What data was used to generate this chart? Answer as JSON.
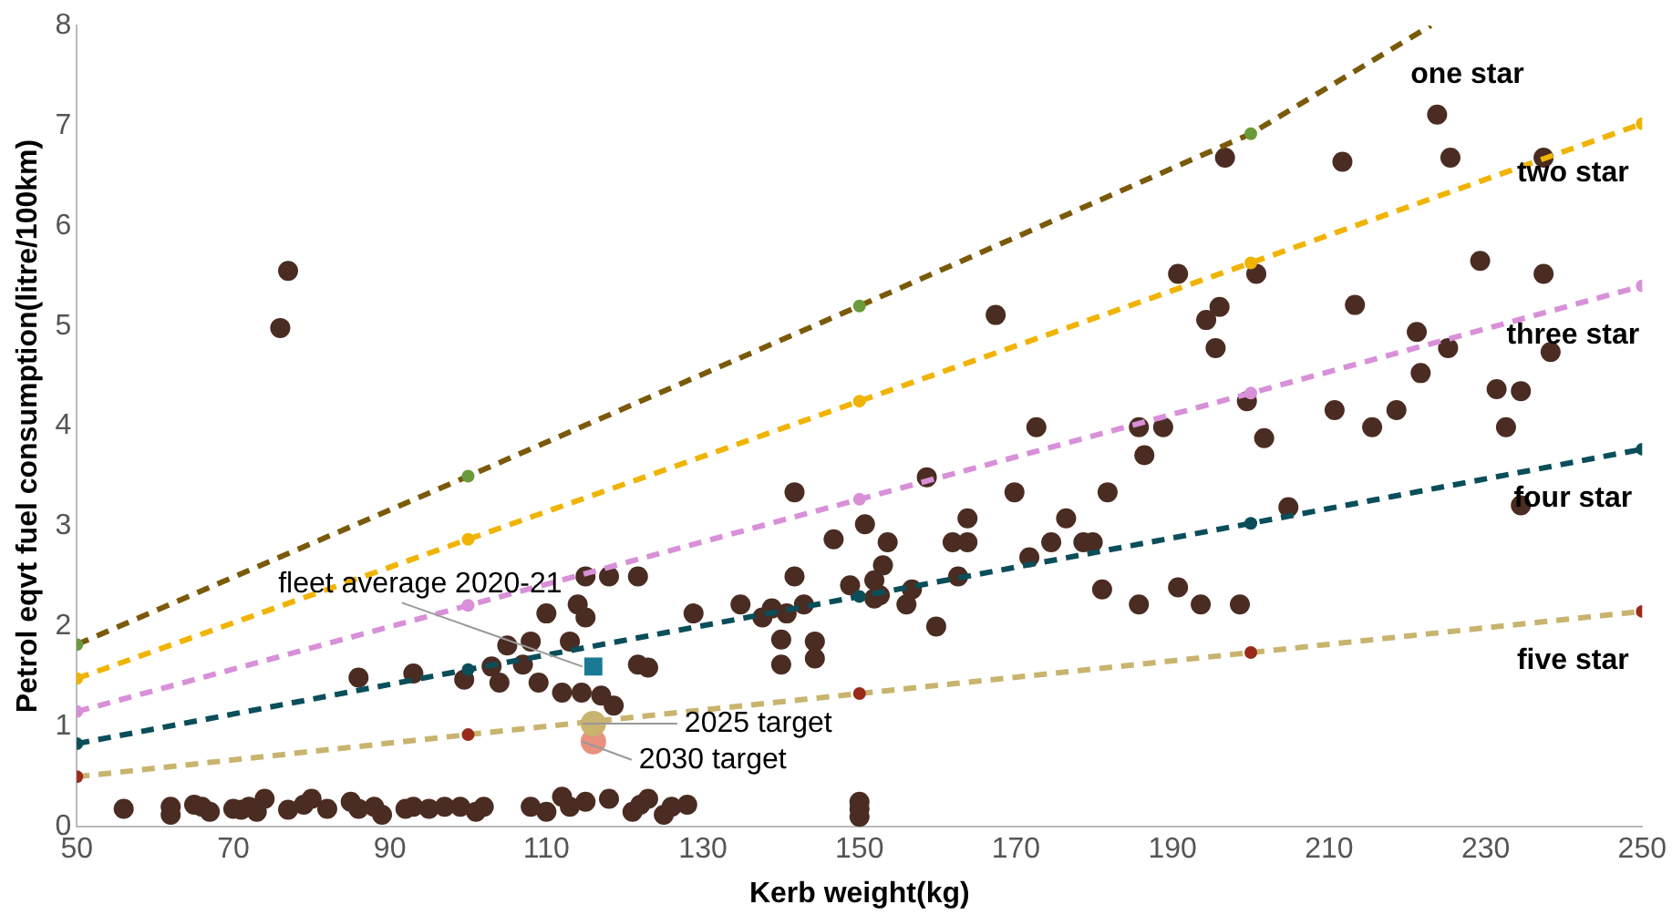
{
  "chart_data": {
    "type": "scatter",
    "xlabel": "Kerb weight(kg)",
    "ylabel": "Petrol eqvt fuel consumption(litre/100km)",
    "xlim": [
      50,
      250
    ],
    "xticks": [
      50,
      70,
      90,
      110,
      130,
      150,
      170,
      190,
      210,
      230,
      250
    ],
    "ylim": [
      0,
      8
    ],
    "yticks": [
      0,
      1,
      2,
      3,
      4,
      5,
      6,
      7,
      8
    ],
    "grid": false,
    "legend": false,
    "series": [
      {
        "color": "#4a2c22",
        "marker": "circle",
        "x": [
          56,
          62,
          62,
          65,
          66,
          67,
          70,
          71,
          72,
          73,
          74,
          77,
          79,
          80,
          82,
          85,
          86,
          88,
          89,
          92,
          93,
          95,
          97,
          99,
          101,
          102,
          108,
          110,
          112,
          113,
          115,
          118,
          121,
          122,
          123,
          125,
          126,
          128,
          150,
          150,
          150,
          76,
          77,
          86,
          93,
          99.5,
          103,
          104,
          105,
          108,
          107,
          110,
          109,
          112,
          113,
          114,
          115,
          115,
          118,
          114.5,
          117,
          121.7,
          121.7,
          123,
          118.6,
          128.8,
          134.8,
          137.6,
          138.8,
          140.7,
          141.7,
          141.7,
          140,
          140,
          142.9,
          144.3,
          144.3,
          146.7,
          148.8,
          150.7,
          151.9,
          151.9,
          153,
          153.6,
          152.6,
          156,
          156.7,
          158.6,
          159.8,
          162.6,
          161.9,
          163.8,
          163.8,
          167.4,
          169.8,
          171.7,
          172.6,
          174.5,
          176.4,
          178.6,
          179.8,
          181,
          181.7,
          185.7,
          185.7,
          186.4,
          188.8,
          190.7,
          190.7,
          193.6,
          194.3,
          196,
          195.5,
          196.7,
          198.6,
          199.5,
          200.7,
          201.7,
          204.8,
          210.7,
          211.7,
          213.3,
          215.5,
          218.6,
          221.2,
          221.7,
          223.8,
          225.2,
          225.5,
          229.3,
          231.4,
          232.6,
          234.5,
          234.5,
          237.4,
          237.4,
          238.3
        ],
        "values": [
          0.18,
          0.2,
          0.12,
          0.22,
          0.2,
          0.15,
          0.18,
          0.17,
          0.2,
          0.15,
          0.28,
          0.17,
          0.22,
          0.28,
          0.18,
          0.25,
          0.18,
          0.2,
          0.12,
          0.18,
          0.2,
          0.18,
          0.2,
          0.2,
          0.15,
          0.2,
          0.2,
          0.15,
          0.3,
          0.2,
          0.25,
          0.28,
          0.15,
          0.22,
          0.28,
          0.12,
          0.2,
          0.22,
          0.1,
          0.18,
          0.25,
          4.98,
          5.55,
          1.49,
          1.53,
          1.47,
          1.6,
          1.44,
          1.81,
          1.85,
          1.62,
          2.13,
          1.44,
          1.34,
          1.85,
          2.22,
          2.09,
          2.5,
          2.5,
          1.34,
          1.31,
          2.5,
          1.62,
          1.59,
          1.21,
          2.13,
          2.22,
          2.09,
          2.18,
          2.13,
          2.5,
          3.34,
          1.87,
          1.62,
          2.22,
          1.85,
          1.68,
          2.87,
          2.41,
          3.02,
          2.46,
          2.28,
          2.61,
          2.84,
          2.31,
          2.22,
          2.37,
          3.49,
          2.0,
          2.5,
          2.84,
          2.84,
          3.08,
          5.11,
          3.34,
          2.69,
          3.99,
          2.84,
          3.08,
          2.84,
          2.84,
          2.37,
          3.34,
          2.22,
          3.99,
          3.71,
          3.99,
          5.52,
          2.39,
          2.22,
          5.06,
          5.19,
          4.78,
          6.68,
          2.22,
          4.25,
          5.52,
          3.88,
          3.19,
          4.16,
          6.64,
          5.21,
          3.99,
          4.16,
          4.94,
          4.53,
          7.11,
          4.78,
          6.68,
          5.65,
          4.37,
          3.99,
          4.35,
          3.21,
          6.68,
          5.52,
          4.74
        ]
      },
      {
        "type": "line",
        "name": "one star",
        "color": "#7a5a0a",
        "colors": [
          "#6a9a3a",
          "#6a9a3a",
          "#6a9a3a",
          "#6a9a3a",
          null
        ],
        "line_style": "dashed",
        "marker": "circle",
        "x": [
          50,
          100,
          150,
          200,
          223
        ],
        "values": [
          1.82,
          3.5,
          5.2,
          6.92,
          8
        ]
      },
      {
        "type": "line",
        "name": "two star",
        "color": "#f0b400",
        "line_style": "dashed",
        "marker": "circle",
        "x": [
          50,
          100,
          150,
          200,
          250
        ],
        "values": [
          1.48,
          2.87,
          4.25,
          5.63,
          7.02
        ]
      },
      {
        "type": "line",
        "name": "three star",
        "color": "#d890d8",
        "line_style": "dashed",
        "marker": "circle",
        "x": [
          50,
          100,
          150,
          200,
          250
        ],
        "values": [
          1.15,
          2.21,
          3.27,
          4.33,
          5.4
        ]
      },
      {
        "type": "line",
        "name": "four star",
        "color": "#0a4e5a",
        "line_style": "dashed",
        "marker": "circle",
        "x": [
          50,
          100,
          150,
          200,
          250
        ],
        "values": [
          0.83,
          1.57,
          2.3,
          3.03,
          3.77
        ]
      },
      {
        "type": "line",
        "name": "five star",
        "color": "#c8b46e",
        "colors": [
          "#9a2a1a",
          "#9a2a1a",
          "#9a2a1a",
          "#9a2a1a",
          "#9a2a1a"
        ],
        "line_style": "dashed",
        "marker": "circle",
        "x": [
          50,
          100,
          150,
          200,
          250
        ],
        "values": [
          0.5,
          0.92,
          1.33,
          1.74,
          2.15
        ]
      },
      {
        "name": "fleet average 2020-21",
        "color": "#1a7a94",
        "marker": "square",
        "x": [
          116
        ],
        "values": [
          1.6
        ]
      },
      {
        "name": "2025 target",
        "color": "#c8b46e",
        "marker": "circle",
        "x": [
          116
        ],
        "values": [
          1.03
        ]
      },
      {
        "name": "2030 target",
        "color": "#e8917e",
        "marker": "circle",
        "x": [
          116
        ],
        "values": [
          0.85
        ]
      }
    ]
  }
}
